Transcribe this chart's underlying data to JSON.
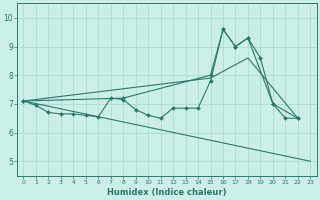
{
  "xlabel": "Humidex (Indice chaleur)",
  "bg_color": "#cceee8",
  "grid_color": "#aaddcc",
  "line_color": "#2a7a6a",
  "xlim": [
    -0.5,
    23.5
  ],
  "ylim": [
    4.5,
    10.5
  ],
  "xticks": [
    0,
    1,
    2,
    3,
    4,
    5,
    6,
    7,
    8,
    9,
    10,
    11,
    12,
    13,
    14,
    15,
    16,
    17,
    18,
    19,
    20,
    21,
    22,
    23
  ],
  "yticks": [
    5,
    6,
    7,
    8,
    9,
    10
  ],
  "line1_x": [
    0,
    1,
    2,
    3,
    4,
    5,
    6,
    7,
    8,
    9,
    10,
    11,
    12,
    13,
    14,
    15,
    16,
    17,
    18,
    19,
    20,
    21,
    22
  ],
  "line1_y": [
    7.1,
    6.95,
    6.7,
    6.65,
    6.65,
    6.6,
    6.55,
    7.2,
    7.15,
    6.8,
    6.6,
    6.5,
    6.85,
    6.85,
    6.85,
    7.8,
    9.6,
    9.0,
    9.3,
    8.6,
    7.0,
    6.5,
    6.5
  ],
  "line2_x": [
    0,
    23
  ],
  "line2_y": [
    7.1,
    5.0
  ],
  "line3_x": [
    0,
    8,
    15,
    16,
    17,
    18,
    20,
    22
  ],
  "line3_y": [
    7.1,
    7.2,
    8.0,
    9.6,
    9.0,
    9.3,
    7.0,
    6.5
  ],
  "line4_x": [
    0,
    15,
    18,
    22
  ],
  "line4_y": [
    7.1,
    7.9,
    8.6,
    6.5
  ]
}
